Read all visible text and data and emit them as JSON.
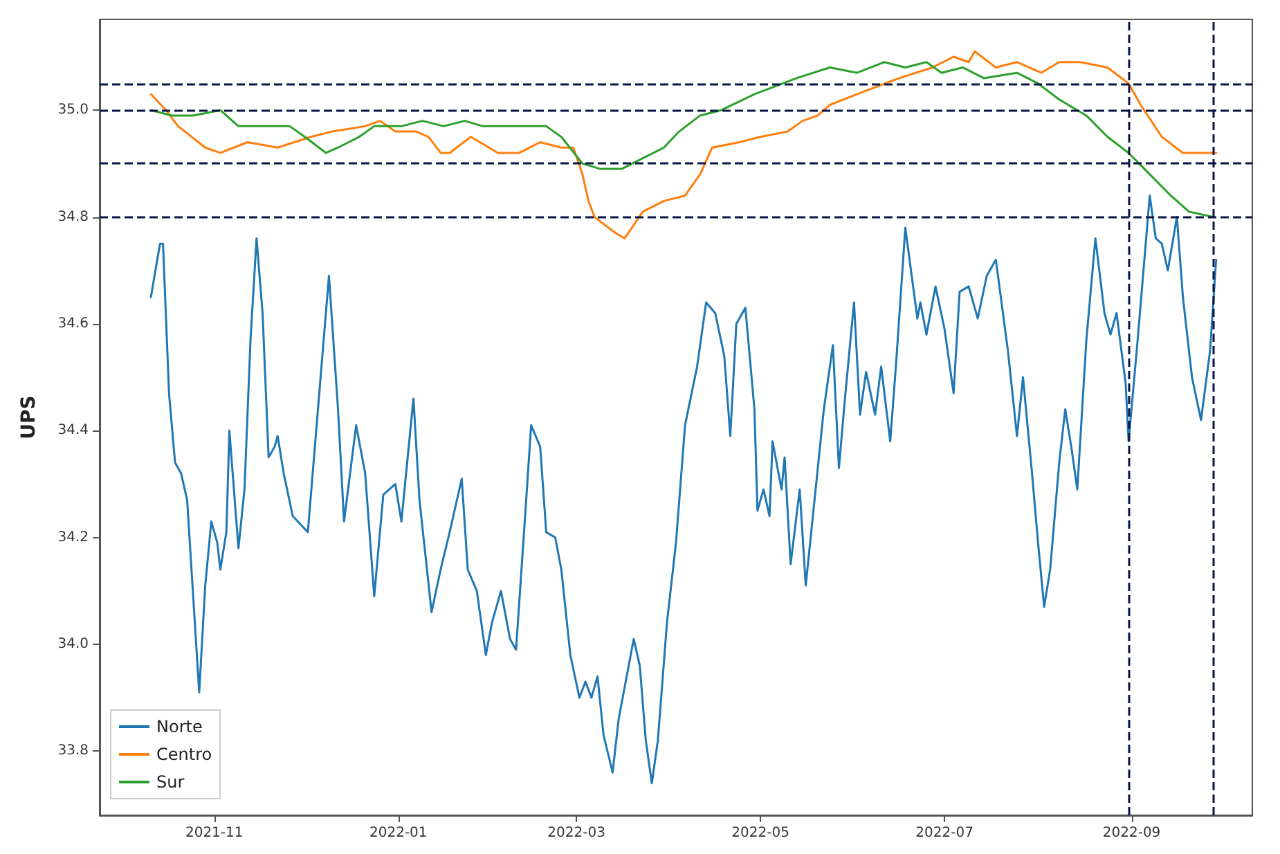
{
  "chart_data": {
    "type": "line",
    "ylabel": "UPS",
    "xlim": [
      "2021-09-24",
      "2022-10-11"
    ],
    "xticks": [
      "2021-11",
      "2022-01",
      "2022-03",
      "2022-05",
      "2022-07",
      "2022-09"
    ],
    "ylim": [
      33.68,
      35.17
    ],
    "yticks": [
      33.8,
      {
        "value": 34,
        "label": "34.0"
      },
      34.2,
      34.4,
      34.6,
      34.8,
      {
        "value": 35,
        "label": "35.0"
      }
    ],
    "grid": false,
    "legend": "bottom left",
    "line_style": "solid",
    "marker": "none",
    "ref_lines": [
      {
        "axis": "y",
        "value": 35.05,
        "color": "#0a1446",
        "line_style": "dashed"
      },
      {
        "axis": "y",
        "value": 35.0,
        "color": "#0a1446",
        "line_style": "dashed"
      },
      {
        "axis": "y",
        "value": 34.9,
        "color": "#0a1446",
        "line_style": "dashed"
      },
      {
        "axis": "y",
        "value": 34.8,
        "color": "#0a1446",
        "line_style": "dashed"
      },
      {
        "axis": "x",
        "value": "2022-08-31",
        "color": "#0a1446",
        "line_style": "dashed"
      },
      {
        "axis": "x",
        "value": "2022-09-28",
        "color": "#0a1446",
        "line_style": "dashed"
      }
    ],
    "series": [
      {
        "name": "Norte",
        "color": "#1f77b4",
        "x": [
          "2021-10-11",
          "2021-10-14",
          "2021-10-15",
          "2021-10-17",
          "2021-10-19",
          "2021-10-21",
          "2021-10-23",
          "2021-10-25",
          "2021-10-27",
          "2021-10-29",
          "2021-10-31",
          "2021-11-02",
          "2021-11-03",
          "2021-11-05",
          "2021-11-06",
          "2021-11-09",
          "2021-11-11",
          "2021-11-13",
          "2021-11-15",
          "2021-11-17",
          "2021-11-19",
          "2021-11-21",
          "2021-11-22",
          "2021-11-24",
          "2021-11-27",
          "2021-12-02",
          "2021-12-09",
          "2021-12-12",
          "2021-12-14",
          "2021-12-18",
          "2021-12-21",
          "2021-12-24",
          "2021-12-27",
          "2021-12-31",
          "2022-01-02",
          "2022-01-06",
          "2022-01-08",
          "2022-01-12",
          "2022-01-15",
          "2022-01-18",
          "2022-01-22",
          "2022-01-24",
          "2022-01-27",
          "2022-01-30",
          "2022-02-01",
          "2022-02-04",
          "2022-02-07",
          "2022-02-09",
          "2022-02-12",
          "2022-02-14",
          "2022-02-17",
          "2022-02-19",
          "2022-02-22",
          "2022-02-24",
          "2022-02-27",
          "2022-03-02",
          "2022-03-04",
          "2022-03-06",
          "2022-03-08",
          "2022-03-10",
          "2022-03-13",
          "2022-03-15",
          "2022-03-20",
          "2022-03-22",
          "2022-03-24",
          "2022-03-26",
          "2022-03-28",
          "2022-03-31",
          "2022-04-03",
          "2022-04-06",
          "2022-04-10",
          "2022-04-13",
          "2022-04-16",
          "2022-04-19",
          "2022-04-21",
          "2022-04-23",
          "2022-04-26",
          "2022-04-29",
          "2022-04-30",
          "2022-05-02",
          "2022-05-04",
          "2022-05-05",
          "2022-05-08",
          "2022-05-09",
          "2022-05-11",
          "2022-05-14",
          "2022-05-16",
          "2022-05-20",
          "2022-05-22",
          "2022-05-25",
          "2022-05-27",
          "2022-05-29",
          "2022-06-01",
          "2022-06-03",
          "2022-06-05",
          "2022-06-08",
          "2022-06-10",
          "2022-06-13",
          "2022-06-15",
          "2022-06-18",
          "2022-06-22",
          "2022-06-23",
          "2022-06-25",
          "2022-06-28",
          "2022-07-01",
          "2022-07-04",
          "2022-07-06",
          "2022-07-09",
          "2022-07-12",
          "2022-07-15",
          "2022-07-18",
          "2022-07-22",
          "2022-07-25",
          "2022-07-27",
          "2022-07-30",
          "2022-08-01",
          "2022-08-03",
          "2022-08-05",
          "2022-08-08",
          "2022-08-10",
          "2022-08-12",
          "2022-08-14",
          "2022-08-17",
          "2022-08-20",
          "2022-08-23",
          "2022-08-25",
          "2022-08-27",
          "2022-08-30",
          "2022-08-31",
          "2022-09-03",
          "2022-09-07",
          "2022-09-09",
          "2022-09-11",
          "2022-09-13",
          "2022-09-16",
          "2022-09-18",
          "2022-09-21",
          "2022-09-24",
          "2022-09-27",
          "2022-09-29"
        ],
        "values": [
          34.65,
          34.75,
          34.75,
          34.47,
          34.34,
          34.32,
          34.27,
          34.09,
          33.91,
          34.11,
          34.23,
          34.19,
          34.14,
          34.21,
          34.4,
          34.18,
          34.29,
          34.57,
          34.76,
          34.62,
          34.35,
          34.37,
          34.39,
          34.32,
          34.24,
          34.21,
          34.69,
          34.44,
          34.23,
          34.41,
          34.32,
          34.09,
          34.28,
          34.3,
          34.23,
          34.46,
          34.27,
          34.06,
          34.14,
          34.21,
          34.31,
          34.14,
          34.1,
          33.98,
          34.04,
          34.1,
          34.01,
          33.99,
          34.24,
          34.41,
          34.37,
          34.21,
          34.2,
          34.14,
          33.98,
          33.9,
          33.93,
          33.9,
          33.94,
          33.83,
          33.76,
          33.86,
          34.01,
          33.96,
          33.82,
          33.74,
          33.82,
          34.04,
          34.19,
          34.41,
          34.52,
          34.64,
          34.62,
          34.54,
          34.39,
          34.6,
          34.63,
          34.44,
          34.25,
          34.29,
          34.24,
          34.38,
          34.29,
          34.35,
          34.15,
          34.29,
          34.11,
          34.33,
          34.44,
          34.56,
          34.33,
          34.46,
          34.64,
          34.43,
          34.51,
          34.43,
          34.52,
          34.38,
          34.53,
          34.78,
          34.61,
          34.64,
          34.58,
          34.67,
          34.59,
          34.47,
          34.66,
          34.67,
          34.61,
          34.69,
          34.72,
          34.55,
          34.39,
          34.5,
          34.32,
          34.19,
          34.07,
          34.14,
          34.34,
          34.44,
          34.37,
          34.29,
          34.57,
          34.76,
          34.62,
          34.58,
          34.62,
          34.49,
          34.38,
          34.57,
          34.84,
          34.76,
          34.75,
          34.7,
          34.8,
          34.65,
          34.5,
          34.42,
          34.55,
          34.72
        ]
      },
      {
        "name": "Centro",
        "color": "#ff7f0e",
        "x": [
          "2021-10-11",
          "2021-10-16",
          "2021-10-20",
          "2021-10-29",
          "2021-11-03",
          "2021-11-12",
          "2021-11-22",
          "2021-12-03",
          "2021-12-10",
          "2021-12-21",
          "2021-12-26",
          "2021-12-31",
          "2022-01-07",
          "2022-01-11",
          "2022-01-15",
          "2022-01-18",
          "2022-01-25",
          "2022-02-03",
          "2022-02-10",
          "2022-02-17",
          "2022-02-24",
          "2022-02-28",
          "2022-03-03",
          "2022-03-05",
          "2022-03-07",
          "2022-03-14",
          "2022-03-17",
          "2022-03-23",
          "2022-03-30",
          "2022-04-06",
          "2022-04-11",
          "2022-04-15",
          "2022-04-24",
          "2022-05-01",
          "2022-05-10",
          "2022-05-15",
          "2022-05-20",
          "2022-05-24",
          "2022-06-02",
          "2022-06-16",
          "2022-06-27",
          "2022-07-04",
          "2022-07-09",
          "2022-07-11",
          "2022-07-18",
          "2022-07-25",
          "2022-08-02",
          "2022-08-08",
          "2022-08-15",
          "2022-08-24",
          "2022-08-31",
          "2022-09-04",
          "2022-09-11",
          "2022-09-18",
          "2022-09-22",
          "2022-09-29"
        ],
        "values": [
          35.03,
          35.0,
          34.97,
          34.93,
          34.92,
          34.94,
          34.93,
          34.95,
          34.96,
          34.97,
          34.98,
          34.96,
          34.96,
          34.95,
          34.92,
          34.92,
          34.95,
          34.92,
          34.92,
          34.94,
          34.93,
          34.93,
          34.88,
          34.83,
          34.8,
          34.77,
          34.76,
          34.81,
          34.83,
          34.84,
          34.88,
          34.93,
          34.94,
          34.95,
          34.96,
          34.98,
          34.99,
          35.01,
          35.03,
          35.06,
          35.08,
          35.1,
          35.09,
          35.11,
          35.08,
          35.09,
          35.07,
          35.09,
          35.09,
          35.08,
          35.05,
          35.01,
          34.95,
          34.92,
          34.92,
          34.92
        ]
      },
      {
        "name": "Sur",
        "color": "#2ca02c",
        "x": [
          "2021-10-11",
          "2021-10-18",
          "2021-10-25",
          "2021-11-03",
          "2021-11-09",
          "2021-11-19",
          "2021-11-26",
          "2021-12-01",
          "2021-12-08",
          "2021-12-12",
          "2021-12-19",
          "2021-12-24",
          "2022-01-02",
          "2022-01-09",
          "2022-01-16",
          "2022-01-23",
          "2022-01-29",
          "2022-02-10",
          "2022-02-19",
          "2022-02-24",
          "2022-03-03",
          "2022-03-09",
          "2022-03-16",
          "2022-03-23",
          "2022-03-30",
          "2022-04-04",
          "2022-04-11",
          "2022-04-18",
          "2022-04-29",
          "2022-05-13",
          "2022-05-24",
          "2022-06-02",
          "2022-06-11",
          "2022-06-18",
          "2022-06-25",
          "2022-06-30",
          "2022-07-07",
          "2022-07-14",
          "2022-07-25",
          "2022-08-01",
          "2022-08-08",
          "2022-08-17",
          "2022-08-24",
          "2022-08-31",
          "2022-09-07",
          "2022-09-14",
          "2022-09-20",
          "2022-09-28"
        ],
        "values": [
          35.0,
          34.99,
          34.99,
          35.0,
          34.97,
          34.97,
          34.97,
          34.95,
          34.92,
          34.93,
          34.95,
          34.97,
          34.97,
          34.98,
          34.97,
          34.98,
          34.97,
          34.97,
          34.97,
          34.95,
          34.9,
          34.89,
          34.89,
          34.91,
          34.93,
          34.96,
          34.99,
          35.0,
          35.03,
          35.06,
          35.08,
          35.07,
          35.09,
          35.08,
          35.09,
          35.07,
          35.08,
          35.06,
          35.07,
          35.05,
          35.02,
          34.99,
          34.95,
          34.92,
          34.88,
          34.84,
          34.81,
          34.8
        ]
      }
    ]
  }
}
